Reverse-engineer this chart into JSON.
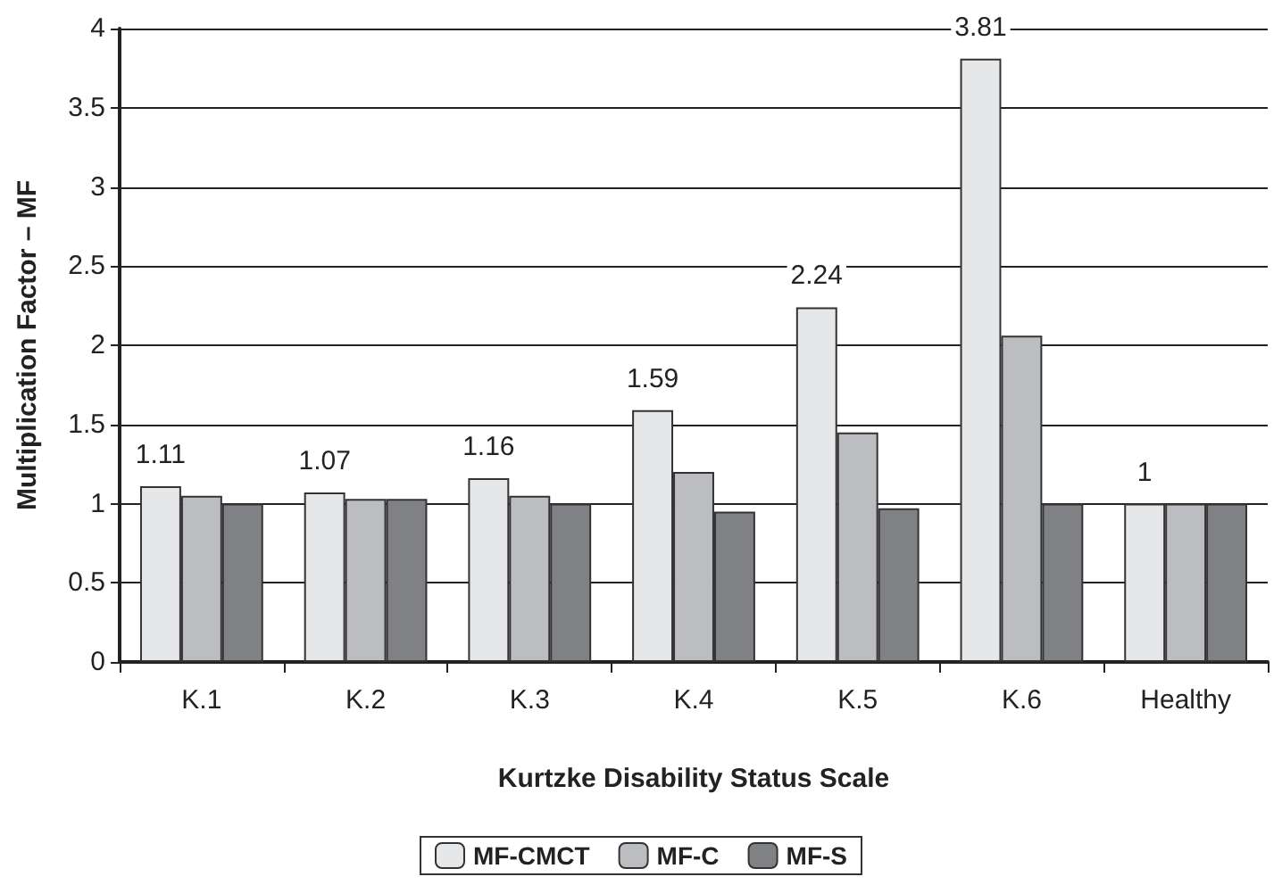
{
  "chart_data": {
    "type": "bar",
    "xlabel": "Kurtzke Disability Status Scale",
    "ylabel": "Multiplication Factor – MF",
    "categories": [
      "K.1",
      "K.2",
      "K.3",
      "K.4",
      "K.5",
      "K.6",
      "Healthy"
    ],
    "series": [
      {
        "name": "MF-CMCT",
        "color": "#e6e7e8",
        "values": [
          1.11,
          1.07,
          1.16,
          1.59,
          2.24,
          3.81,
          1
        ],
        "value_labels": [
          "1.11",
          "1.07",
          "1.16",
          "1.59",
          "2.24",
          "3.81",
          "1"
        ]
      },
      {
        "name": "MF-C",
        "color": "#bcbdc0",
        "values": [
          1.05,
          1.03,
          1.05,
          1.2,
          1.45,
          2.06,
          1
        ]
      },
      {
        "name": "MF-S",
        "color": "#808184",
        "values": [
          1,
          1.03,
          1,
          0.95,
          0.97,
          1,
          1
        ]
      }
    ],
    "ylim": [
      0,
      4
    ],
    "yticks": [
      0,
      0.5,
      1,
      1.5,
      2,
      2.5,
      3,
      3.5,
      4
    ],
    "grid": "y",
    "legend": "bottom"
  }
}
